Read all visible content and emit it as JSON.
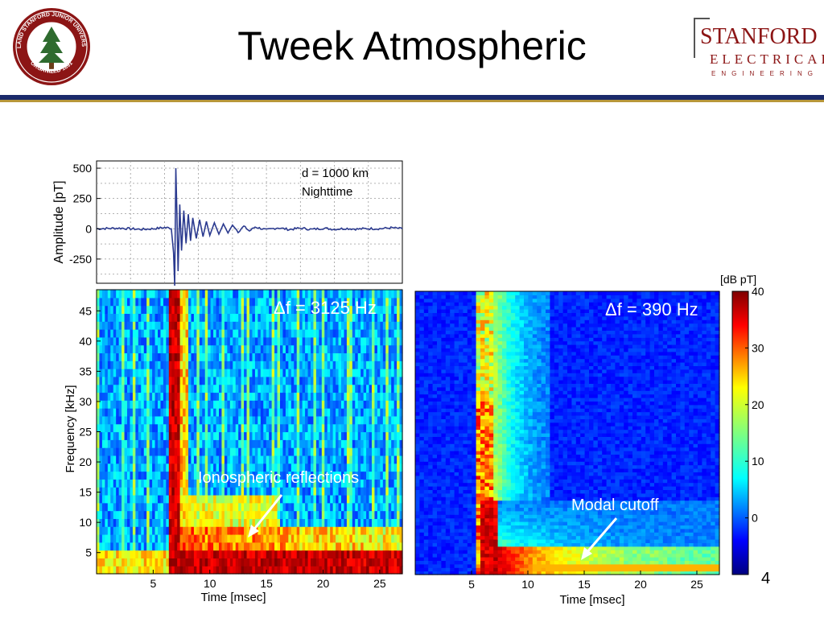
{
  "slide": {
    "title": "Tweek Atmospheric",
    "page_number": "4",
    "seal_text": "LELAND STANFORD JUNIOR UNIVERSITY · ORGANIZED 1891",
    "logo_line1": "STANFORD",
    "logo_line2": "ELECTRICAL",
    "logo_line3": "ENGINEERING",
    "colors": {
      "navy_rule": "#1b2a6b",
      "gold_rule": "#b8973a",
      "seal_red": "#8c1515"
    }
  },
  "chart_data": [
    {
      "type": "line",
      "name": "waveform",
      "annotation_1": "d = 1000 km",
      "annotation_2": "Nighttime",
      "ylabel": "Amplitude [pT]",
      "yticks": [
        500,
        250,
        0,
        -250
      ],
      "ylim": [
        -450,
        560
      ],
      "xlim": [
        0,
        27
      ],
      "grid": true,
      "line_color": "#2b3a8f",
      "x": [
        0,
        2,
        4,
        5,
        6,
        6.6,
        6.8,
        6.9,
        7.0,
        7.1,
        7.2,
        7.35,
        7.5,
        7.7,
        7.9,
        8.1,
        8.3,
        8.5,
        8.8,
        9.1,
        9.4,
        9.7,
        10.0,
        10.4,
        10.8,
        11.2,
        11.6,
        12.0,
        12.5,
        13.0,
        13.5,
        14.0,
        15,
        16,
        17,
        18,
        19,
        20,
        21,
        22,
        23,
        24,
        25,
        26,
        27
      ],
      "y": [
        0,
        5,
        -5,
        0,
        10,
        5,
        -200,
        -470,
        500,
        120,
        -350,
        200,
        -180,
        150,
        -120,
        120,
        -100,
        90,
        -80,
        75,
        -65,
        60,
        -55,
        50,
        -45,
        40,
        -35,
        30,
        -25,
        20,
        -18,
        15,
        -10,
        8,
        -6,
        5,
        -5,
        4,
        -4,
        3,
        -3,
        2,
        0,
        8,
        0
      ]
    },
    {
      "type": "heatmap",
      "name": "spectrogram-broadband",
      "annotation": "Δf = 3125 Hz",
      "xlabel": "Time [msec]",
      "ylabel": "Frequency [kHz]",
      "xticks": [
        5,
        10,
        15,
        20,
        25
      ],
      "yticks": [
        5,
        10,
        15,
        20,
        25,
        30,
        35,
        40,
        45
      ],
      "xlim": [
        0,
        27
      ],
      "ylim": [
        1.5,
        48.5
      ],
      "callout": "Ionospheric reflections"
    },
    {
      "type": "heatmap",
      "name": "spectrogram-narrowband",
      "annotation": "Δf = 390 Hz",
      "xlabel": "Time [msec]",
      "xticks": [
        5,
        10,
        15,
        20,
        25
      ],
      "xlim": [
        0,
        27
      ],
      "ylim": [
        1.5,
        48.5
      ],
      "callout": "Modal cutoff"
    },
    {
      "type": "heatmap",
      "name": "colorbar",
      "label": "[dB pT]",
      "ticks": [
        40,
        30,
        20,
        10,
        0
      ],
      "range": [
        -10,
        40
      ],
      "colormap": "jet"
    }
  ]
}
